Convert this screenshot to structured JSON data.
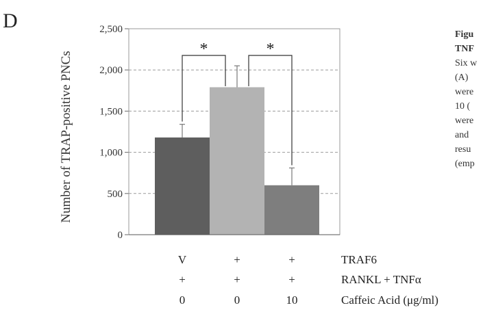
{
  "panel_label": "D",
  "caption_lines": [
    "Figu",
    "TNF",
    "Six w",
    "(A)",
    "were",
    "10 (",
    "were",
    "and",
    "resu",
    "(emp"
  ],
  "chart_data": {
    "type": "bar",
    "ylabel": "Number of TRAP-positive PNCs",
    "ylim": [
      0,
      2500
    ],
    "yticks": [
      0,
      500,
      1000,
      1500,
      2000,
      2500
    ],
    "ytick_labels": [
      "0",
      "500",
      "1,000",
      "1,500",
      "2,000",
      "2,500"
    ],
    "grid": true,
    "values": [
      1180,
      1790,
      600
    ],
    "errors": [
      160,
      260,
      210
    ],
    "colors": [
      "#5e5e5e",
      "#b3b3b3",
      "#7e7e7e"
    ],
    "significance": [
      {
        "from": 0,
        "to": 1,
        "label": "*"
      },
      {
        "from": 1,
        "to": 2,
        "label": "*"
      }
    ],
    "conditions": [
      {
        "name": "TRAF6",
        "values": [
          "V",
          "+",
          "+"
        ]
      },
      {
        "name": "RANKL + TNFα",
        "values": [
          "+",
          "+",
          "+"
        ]
      },
      {
        "name": "Caffeic Acid (μg/ml)",
        "values": [
          "0",
          "0",
          "10"
        ]
      }
    ]
  }
}
